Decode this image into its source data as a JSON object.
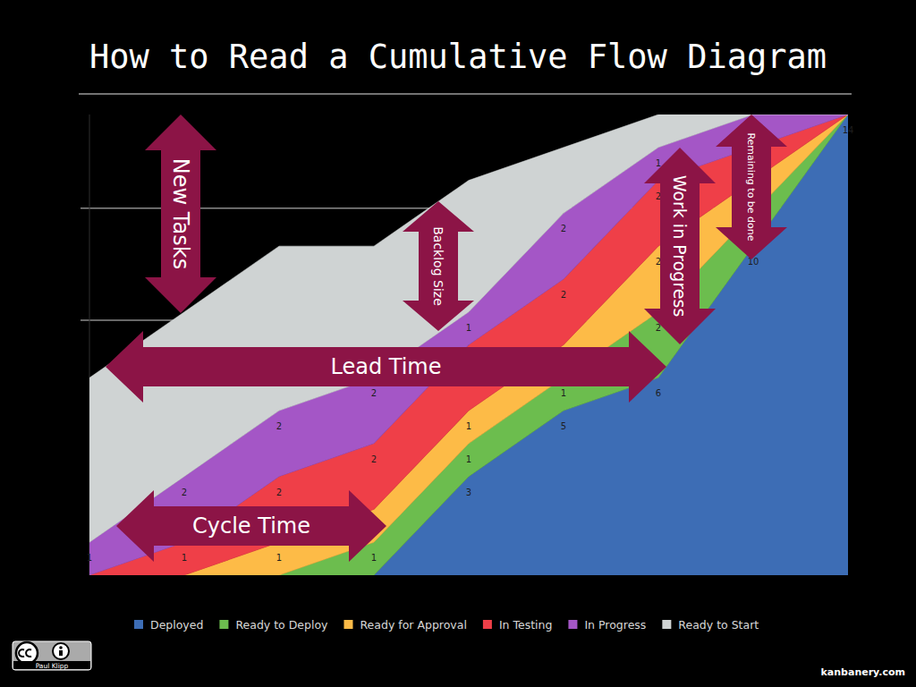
{
  "chart_data": {
    "type": "area",
    "stacked": true,
    "title": "How to Read a Cumulative Flow Diagram",
    "categories": [
      null,
      null,
      null,
      null,
      null,
      null,
      null,
      null,
      null
    ],
    "series": [
      {
        "name": "Deployed",
        "color": "#3d6db5",
        "values": [
          0,
          0,
          0,
          0,
          3,
          5,
          6,
          10,
          14
        ]
      },
      {
        "name": "Ready to Deploy",
        "color": "#6cbd4e",
        "values": [
          0,
          0,
          0,
          1,
          1,
          1,
          2,
          1,
          0
        ]
      },
      {
        "name": "Ready for Approval",
        "color": "#fdbb47",
        "values": [
          0,
          0,
          1,
          1,
          1,
          1,
          2,
          1,
          0
        ]
      },
      {
        "name": "In Testing",
        "color": "#ef3f48",
        "values": [
          0,
          1,
          2,
          2,
          2,
          2,
          2,
          1,
          0
        ]
      },
      {
        "name": "In Progress",
        "color": "#a456c6",
        "values": [
          1,
          2,
          2,
          2,
          1,
          2,
          1,
          1,
          0
        ]
      },
      {
        "name": "Ready to Start",
        "color": "#cfd3d3",
        "values": [
          5,
          5,
          5,
          4,
          4,
          2,
          1,
          0,
          0
        ],
        "data_labels": false
      }
    ],
    "ylim": [
      0,
      14
    ],
    "yticks": [
      7.75,
      11.15
    ],
    "grid": true,
    "tick_labels": false,
    "data_labels": true,
    "legend": "bottom",
    "annotations": [
      {
        "text": "New Tasks"
      },
      {
        "text": "Backlog Size"
      },
      {
        "text": "Lead Time"
      },
      {
        "text": "Work in Progress"
      },
      {
        "text": "Remaining to be done"
      },
      {
        "text": "Cycle Time"
      }
    ]
  },
  "footer": {
    "license_holder": "Paul Klipp",
    "site": "kanbanery.com"
  }
}
